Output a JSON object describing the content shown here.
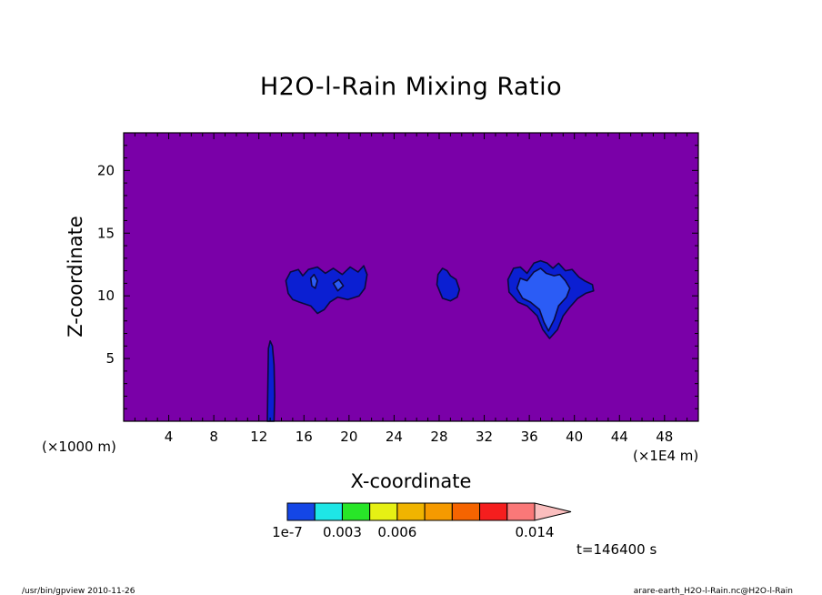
{
  "chart_data": {
    "type": "heatmap",
    "title": "H2O-l-Rain Mixing Ratio",
    "xlabel": "X-coordinate",
    "ylabel": "Z-coordinate",
    "x_unit": "(×1E4 m)",
    "y_unit": "(×1000 m)",
    "xlim": [
      0,
      51
    ],
    "ylim": [
      0,
      23
    ],
    "x_ticks": [
      4,
      8,
      12,
      16,
      20,
      24,
      28,
      32,
      36,
      40,
      44,
      48
    ],
    "y_ticks": [
      5,
      10,
      15,
      20
    ],
    "colorbar": {
      "levels": [
        1e-07,
        0.0015,
        0.003,
        0.0045,
        0.006,
        0.0075,
        0.009,
        0.0105,
        0.0125,
        0.014
      ],
      "labels": [
        "1e-7",
        "0.003",
        "0.006",
        "0.014"
      ],
      "label_values": [
        1e-07,
        0.003,
        0.006,
        0.014
      ],
      "colors": [
        "#1446e6",
        "#1ee6e6",
        "#28e628",
        "#e6f014",
        "#f0b400",
        "#f59a00",
        "#f56400",
        "#f51e1e",
        "#fa7878",
        "#fabebe"
      ]
    },
    "time_label": "t=146400 s",
    "colors": {
      "background": "#7a00a8",
      "low": "#0b1fd2",
      "mid": "#2b5cf5",
      "contour": "#0a0a3c"
    },
    "regions": [
      {
        "name": "column",
        "level": "low",
        "outline": [
          [
            12.75,
            0
          ],
          [
            12.8,
            3
          ],
          [
            12.85,
            5.8
          ],
          [
            13.0,
            6.4
          ],
          [
            13.2,
            6.0
          ],
          [
            13.35,
            4.5
          ],
          [
            13.4,
            2
          ],
          [
            13.35,
            0
          ]
        ]
      },
      {
        "name": "cloud-left",
        "level": "low",
        "outline": [
          [
            14.6,
            10.2
          ],
          [
            14.4,
            11.2
          ],
          [
            14.8,
            11.9
          ],
          [
            15.5,
            12.1
          ],
          [
            15.9,
            11.6
          ],
          [
            16.4,
            12.1
          ],
          [
            17.2,
            12.3
          ],
          [
            17.9,
            11.8
          ],
          [
            18.6,
            12.2
          ],
          [
            19.4,
            11.7
          ],
          [
            20.1,
            12.3
          ],
          [
            20.8,
            11.9
          ],
          [
            21.3,
            12.4
          ],
          [
            21.6,
            11.7
          ],
          [
            21.4,
            10.6
          ],
          [
            20.9,
            10.0
          ],
          [
            19.9,
            9.7
          ],
          [
            19.0,
            9.9
          ],
          [
            18.3,
            9.5
          ],
          [
            17.8,
            8.9
          ],
          [
            17.2,
            8.6
          ],
          [
            16.6,
            9.2
          ],
          [
            15.6,
            9.5
          ],
          [
            15.0,
            9.7
          ]
        ]
      },
      {
        "name": "cloud-mid",
        "level": "low",
        "outline": [
          [
            27.8,
            10.9
          ],
          [
            27.9,
            11.7
          ],
          [
            28.3,
            12.2
          ],
          [
            28.7,
            12.0
          ],
          [
            29.0,
            11.6
          ],
          [
            29.5,
            11.3
          ],
          [
            29.8,
            10.5
          ],
          [
            29.6,
            9.9
          ],
          [
            29.0,
            9.6
          ],
          [
            28.3,
            9.8
          ]
        ]
      },
      {
        "name": "cloud-right",
        "level": "low",
        "outline": [
          [
            34.2,
            10.3
          ],
          [
            34.1,
            11.3
          ],
          [
            34.6,
            12.2
          ],
          [
            35.2,
            12.3
          ],
          [
            35.8,
            11.8
          ],
          [
            36.4,
            12.6
          ],
          [
            37.0,
            12.8
          ],
          [
            37.6,
            12.6
          ],
          [
            38.1,
            12.2
          ],
          [
            38.6,
            12.6
          ],
          [
            39.2,
            12.0
          ],
          [
            39.8,
            12.1
          ],
          [
            40.4,
            11.5
          ],
          [
            40.9,
            11.2
          ],
          [
            41.6,
            10.9
          ],
          [
            41.7,
            10.4
          ],
          [
            41.0,
            10.2
          ],
          [
            40.3,
            9.8
          ],
          [
            39.6,
            9.1
          ],
          [
            39.0,
            8.4
          ],
          [
            38.5,
            7.3
          ],
          [
            37.8,
            6.6
          ],
          [
            37.2,
            7.3
          ],
          [
            36.7,
            8.4
          ],
          [
            35.8,
            9.2
          ],
          [
            35.0,
            9.5
          ]
        ]
      },
      {
        "name": "cloud-right-core",
        "level": "mid",
        "outline": [
          [
            34.9,
            10.6
          ],
          [
            35.2,
            11.4
          ],
          [
            35.8,
            11.2
          ],
          [
            36.4,
            11.9
          ],
          [
            37.0,
            12.2
          ],
          [
            37.5,
            11.8
          ],
          [
            38.2,
            11.6
          ],
          [
            38.7,
            11.7
          ],
          [
            39.2,
            11.2
          ],
          [
            39.6,
            10.6
          ],
          [
            39.3,
            9.9
          ],
          [
            38.6,
            9.2
          ],
          [
            38.2,
            8.1
          ],
          [
            37.7,
            7.2
          ],
          [
            37.3,
            7.9
          ],
          [
            36.9,
            8.9
          ],
          [
            36.1,
            9.5
          ],
          [
            35.4,
            9.8
          ]
        ]
      },
      {
        "name": "cloud-left-inner-a",
        "level": "mid",
        "outline": [
          [
            16.6,
            11.4
          ],
          [
            16.9,
            11.7
          ],
          [
            17.2,
            11.2
          ],
          [
            17.0,
            10.6
          ],
          [
            16.7,
            10.8
          ]
        ]
      },
      {
        "name": "cloud-left-inner-b",
        "level": "mid",
        "outline": [
          [
            18.6,
            11.0
          ],
          [
            19.1,
            11.3
          ],
          [
            19.5,
            10.8
          ],
          [
            19.0,
            10.4
          ]
        ]
      }
    ]
  },
  "footer": {
    "left": "/usr/bin/gpview  2010-11-26",
    "right": "arare-earth_H2O-l-Rain.nc@H2O-l-Rain"
  }
}
